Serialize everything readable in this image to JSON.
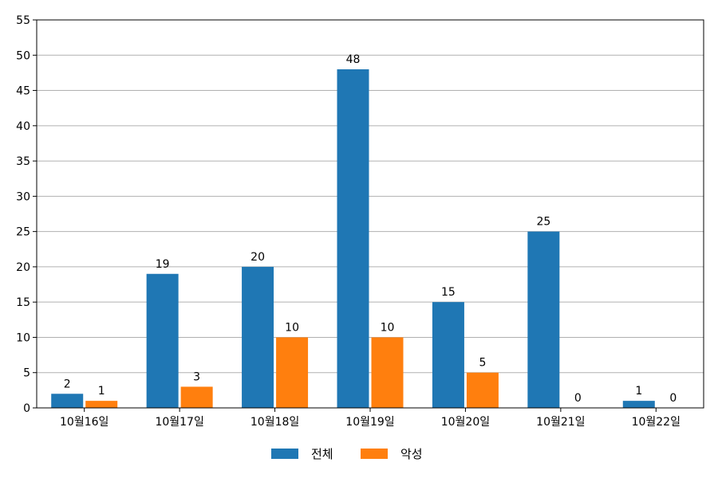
{
  "chart_data": {
    "type": "bar",
    "categories": [
      "10월16일",
      "10월17일",
      "10월18일",
      "10월19일",
      "10월20일",
      "10월21일",
      "10월22일"
    ],
    "series": [
      {
        "name": "전체",
        "values": [
          2,
          19,
          20,
          48,
          15,
          25,
          1
        ],
        "color": "#1f77b4"
      },
      {
        "name": "악성",
        "values": [
          1,
          3,
          10,
          10,
          5,
          0,
          0
        ],
        "color": "#ff7f0e"
      }
    ],
    "yticks": [
      0,
      5,
      10,
      15,
      20,
      25,
      30,
      35,
      40,
      45,
      50,
      55
    ],
    "ylim": [
      0,
      55
    ],
    "grid": "horizontal",
    "legend_position": "bottom-center",
    "title": "",
    "xlabel": "",
    "ylabel": ""
  }
}
